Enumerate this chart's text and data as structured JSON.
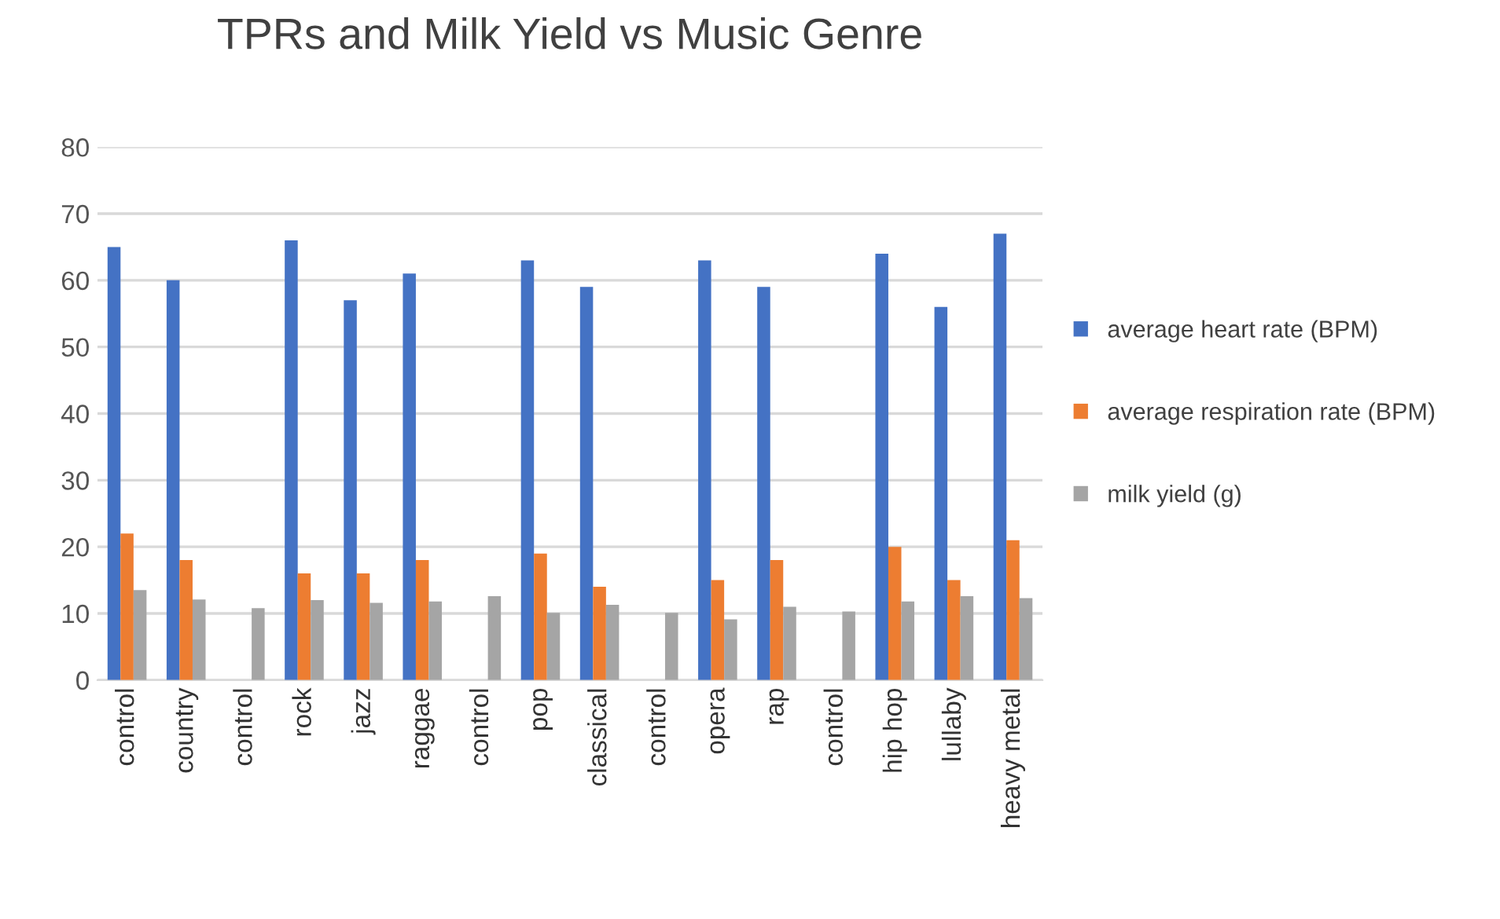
{
  "chart_data": {
    "type": "bar",
    "title": "TPRs and Milk Yield vs Music Genre",
    "categories": [
      "control",
      "country",
      "control",
      "rock",
      "jazz",
      "raggae",
      "control",
      "pop",
      "classical",
      "control",
      "opera",
      "rap",
      "control",
      "hip hop",
      "lullaby",
      "heavy metal"
    ],
    "series": [
      {
        "name": "average heart rate (BPM)",
        "color": "#4472c4",
        "values": [
          65,
          60,
          null,
          66,
          57,
          61,
          null,
          63,
          59,
          null,
          63,
          59,
          null,
          64,
          56,
          67
        ]
      },
      {
        "name": "average respiration rate (BPM)",
        "color": "#ed7d31",
        "values": [
          22,
          18,
          null,
          16,
          16,
          18,
          null,
          19,
          14,
          null,
          15,
          18,
          null,
          20,
          15,
          21
        ]
      },
      {
        "name": "milk yield (g)",
        "color": "#a5a5a5",
        "values": [
          13.5,
          12.1,
          10.8,
          12.0,
          11.6,
          11.8,
          12.6,
          10.1,
          11.3,
          10.1,
          9.1,
          11.0,
          10.3,
          11.8,
          12.6,
          12.3
        ]
      }
    ],
    "ylim": [
      0,
      80
    ],
    "yticks": [
      0,
      10,
      20,
      30,
      40,
      50,
      60,
      70,
      80
    ],
    "grid": "y",
    "legend": "right"
  }
}
